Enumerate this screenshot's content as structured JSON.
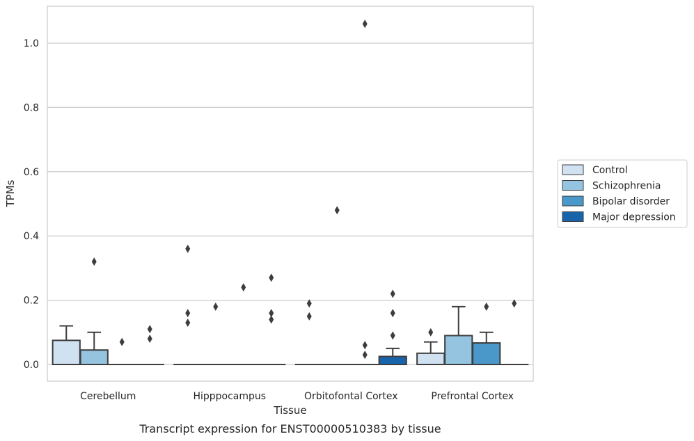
{
  "chart_data": {
    "type": "box",
    "caption": "Transcript expression for ENST00000510383 by tissue",
    "xlabel": "Tissue",
    "ylabel": "TPMs",
    "ylim": [
      -0.05,
      1.12
    ],
    "yticks": [
      0.0,
      0.2,
      0.4,
      0.6,
      0.8,
      1.0
    ],
    "ytick_labels": [
      "0.0",
      "0.2",
      "0.4",
      "0.6",
      "0.8",
      "1.0"
    ],
    "grid": "horizontal",
    "legend_position": "right",
    "categories": [
      "Cerebellum",
      "Hipppocampus",
      "Orbitofontal Cortex",
      "Prefrontal Cortex"
    ],
    "series": [
      {
        "name": "Control",
        "color": "#d0e1f2",
        "boxes": [
          {
            "q1": 0.0,
            "median": 0.0,
            "q3": 0.075,
            "whislo": 0.0,
            "whishi": 0.12,
            "fliers": []
          },
          {
            "q1": 0.0,
            "median": 0.0,
            "q3": 0.0,
            "whislo": 0.0,
            "whishi": 0.0,
            "fliers": [
              0.36,
              0.16,
              0.13
            ]
          },
          {
            "q1": 0.0,
            "median": 0.0,
            "q3": 0.0,
            "whislo": 0.0,
            "whishi": 0.0,
            "fliers": [
              0.19,
              0.15
            ]
          },
          {
            "q1": 0.0,
            "median": 0.0,
            "q3": 0.035,
            "whislo": 0.0,
            "whishi": 0.07,
            "fliers": [
              0.1
            ]
          }
        ]
      },
      {
        "name": "Schizophrenia",
        "color": "#94c4df",
        "boxes": [
          {
            "q1": 0.0,
            "median": 0.0,
            "q3": 0.045,
            "whislo": 0.0,
            "whishi": 0.1,
            "fliers": [
              0.32
            ]
          },
          {
            "q1": 0.0,
            "median": 0.0,
            "q3": 0.0,
            "whislo": 0.0,
            "whishi": 0.0,
            "fliers": [
              0.18
            ]
          },
          {
            "q1": 0.0,
            "median": 0.0,
            "q3": 0.0,
            "whislo": 0.0,
            "whishi": 0.0,
            "fliers": [
              0.48
            ]
          },
          {
            "q1": 0.0,
            "median": 0.0,
            "q3": 0.09,
            "whislo": 0.0,
            "whishi": 0.18,
            "fliers": []
          }
        ]
      },
      {
        "name": "Bipolar disorder",
        "color": "#4a98c9",
        "boxes": [
          {
            "q1": 0.0,
            "median": 0.0,
            "q3": 0.0,
            "whislo": 0.0,
            "whishi": 0.0,
            "fliers": [
              0.07
            ]
          },
          {
            "q1": 0.0,
            "median": 0.0,
            "q3": 0.0,
            "whislo": 0.0,
            "whishi": 0.0,
            "fliers": [
              0.24
            ]
          },
          {
            "q1": 0.0,
            "median": 0.0,
            "q3": 0.0,
            "whislo": 0.0,
            "whishi": 0.0,
            "fliers": [
              1.06,
              0.06,
              0.03
            ]
          },
          {
            "q1": 0.0,
            "median": 0.0,
            "q3": 0.067,
            "whislo": 0.0,
            "whishi": 0.1,
            "fliers": [
              0.18
            ]
          }
        ]
      },
      {
        "name": "Major depression",
        "color": "#1764ab",
        "boxes": [
          {
            "q1": 0.0,
            "median": 0.0,
            "q3": 0.0,
            "whislo": 0.0,
            "whishi": 0.0,
            "fliers": [
              0.11,
              0.08
            ]
          },
          {
            "q1": 0.0,
            "median": 0.0,
            "q3": 0.0,
            "whislo": 0.0,
            "whishi": 0.0,
            "fliers": [
              0.27,
              0.16,
              0.14
            ]
          },
          {
            "q1": 0.0,
            "median": 0.0,
            "q3": 0.025,
            "whislo": 0.0,
            "whishi": 0.05,
            "fliers": [
              0.22,
              0.16,
              0.09
            ]
          },
          {
            "q1": 0.0,
            "median": 0.0,
            "q3": 0.0,
            "whislo": 0.0,
            "whishi": 0.0,
            "fliers": [
              0.19
            ]
          }
        ]
      }
    ]
  }
}
